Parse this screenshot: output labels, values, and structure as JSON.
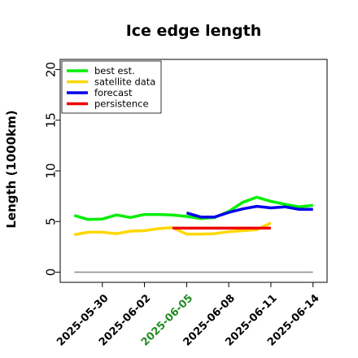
{
  "chart_data": {
    "type": "line",
    "title": "Ice edge length",
    "ylabel": "Length (1000km)",
    "xlabel": "",
    "ylim": [
      -1,
      21
    ],
    "xlim": [
      "2025-05-27",
      "2025-06-15"
    ],
    "yticks": [
      0,
      5,
      10,
      15,
      20
    ],
    "xticks": [
      "2025-05-30",
      "2025-06-02",
      "2025-06-05",
      "2025-06-08",
      "2025-06-11",
      "2025-06-14"
    ],
    "highlight_tick": "2025-06-05",
    "highlight_color": "#228B22",
    "legend_position": "top-left",
    "grid": false,
    "series": [
      {
        "name": "best est.",
        "color": "#00ee00",
        "x": [
          "2025-05-28",
          "2025-05-29",
          "2025-05-30",
          "2025-05-31",
          "2025-06-01",
          "2025-06-02",
          "2025-06-03",
          "2025-06-04",
          "2025-06-05",
          "2025-06-06",
          "2025-06-07",
          "2025-06-08",
          "2025-06-09",
          "2025-06-10",
          "2025-06-11",
          "2025-06-12",
          "2025-06-13",
          "2025-06-14"
        ],
        "values": [
          5.6,
          5.2,
          5.25,
          5.65,
          5.4,
          5.7,
          5.7,
          5.65,
          5.5,
          5.3,
          5.4,
          6.0,
          6.9,
          7.4,
          7.0,
          6.7,
          6.45,
          6.6
        ]
      },
      {
        "name": "satellite data",
        "color": "#ffd700",
        "x": [
          "2025-05-28",
          "2025-05-29",
          "2025-05-30",
          "2025-05-31",
          "2025-06-01",
          "2025-06-02",
          "2025-06-03",
          "2025-06-04",
          "2025-06-05",
          "2025-06-06",
          "2025-06-07",
          "2025-06-08",
          "2025-06-09",
          "2025-06-10",
          "2025-06-11"
        ],
        "values": [
          3.7,
          3.95,
          3.95,
          3.8,
          4.05,
          4.1,
          4.3,
          4.4,
          3.75,
          3.75,
          3.8,
          4.0,
          4.1,
          4.2,
          4.85
        ]
      },
      {
        "name": "forecast",
        "color": "#0000ee",
        "x": [
          "2025-06-05",
          "2025-06-06",
          "2025-06-07",
          "2025-06-08",
          "2025-06-09",
          "2025-06-10",
          "2025-06-11",
          "2025-06-12",
          "2025-06-13",
          "2025-06-14"
        ],
        "values": [
          5.85,
          5.45,
          5.45,
          5.9,
          6.25,
          6.5,
          6.35,
          6.45,
          6.2,
          6.2
        ]
      },
      {
        "name": "persistence",
        "color": "#ee0000",
        "x": [
          "2025-06-04",
          "2025-06-11"
        ],
        "values": [
          4.35,
          4.35
        ]
      },
      {
        "name": "",
        "color": "#888888",
        "x": [
          "2025-05-28",
          "2025-06-14"
        ],
        "values": [
          0,
          0
        ]
      }
    ]
  }
}
